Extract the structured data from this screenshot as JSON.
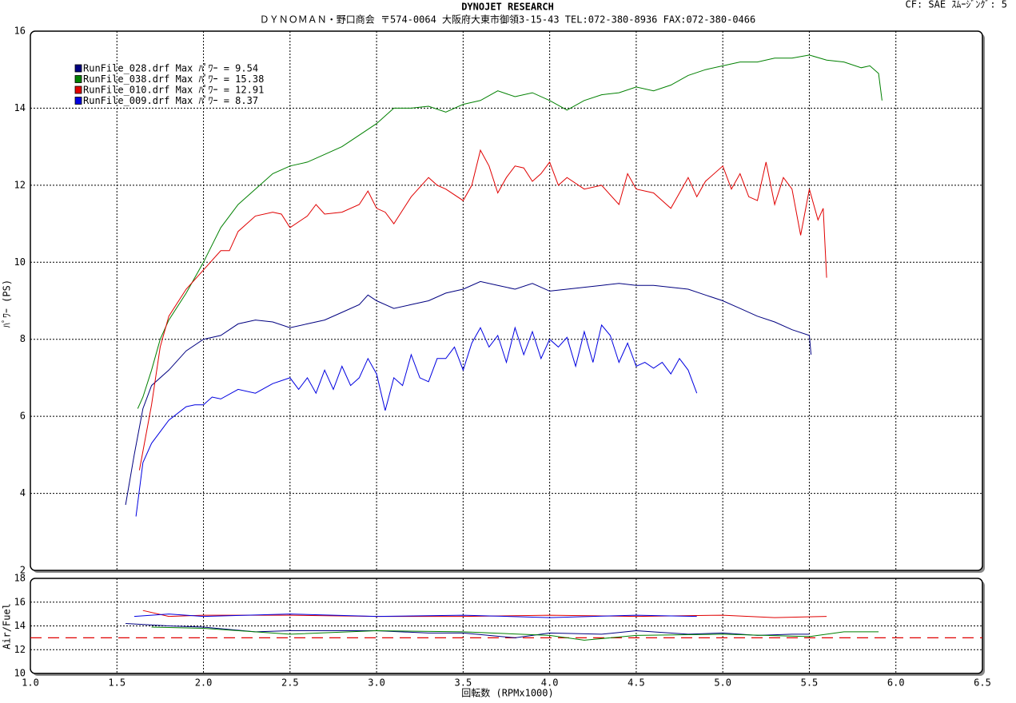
{
  "chart_data": [
    {
      "type": "line",
      "title": "DYNOJET  RESEARCH",
      "subtitle": "ＤＹＮＯＭＡＮ・野口商会 〒574-0064 大阪府大東市御領3-15-43 TEL:072-380-8936 FAX:072-380-0466",
      "annotation": "CF: SAE  ｽﾑｰｼﾞﾝｸﾞ: 5",
      "y_label": "ﾊﾟﾜｰ (PS)",
      "xlim": [
        1.0,
        6.5
      ],
      "xticks": [
        1.5,
        2,
        2.5,
        3,
        3.5,
        4,
        4.5,
        5,
        5.5,
        6
      ],
      "ylim": [
        2,
        16
      ],
      "yticks": [
        2,
        4,
        6,
        8,
        10,
        12,
        14,
        16
      ],
      "grid": true,
      "legend": "upper left",
      "series": [
        {
          "name": "RunFile_028.drf Max ﾊﾟﾜｰ = 9.54",
          "color": "#000080",
          "x": [
            1.55,
            1.6,
            1.65,
            1.7,
            1.8,
            1.9,
            2.0,
            2.1,
            2.2,
            2.3,
            2.4,
            2.5,
            2.6,
            2.7,
            2.8,
            2.9,
            2.95,
            3.0,
            3.1,
            3.2,
            3.3,
            3.4,
            3.5,
            3.6,
            3.7,
            3.8,
            3.9,
            4.0,
            4.1,
            4.2,
            4.3,
            4.4,
            4.5,
            4.6,
            4.7,
            4.8,
            4.9,
            5.0,
            5.1,
            5.2,
            5.3,
            5.4,
            5.5,
            5.51
          ],
          "values": [
            3.7,
            5.0,
            6.2,
            6.8,
            7.2,
            7.7,
            8.0,
            8.1,
            8.4,
            8.5,
            8.45,
            8.3,
            8.4,
            8.5,
            8.7,
            8.9,
            9.15,
            9.0,
            8.8,
            8.9,
            9.0,
            9.2,
            9.3,
            9.5,
            9.4,
            9.3,
            9.45,
            9.25,
            9.3,
            9.35,
            9.4,
            9.45,
            9.4,
            9.4,
            9.35,
            9.3,
            9.15,
            9.0,
            8.8,
            8.6,
            8.45,
            8.25,
            8.1,
            7.6
          ]
        },
        {
          "name": "RunFile_038.drf Max ﾊﾟﾜｰ = 15.38",
          "color": "#008000",
          "x": [
            1.62,
            1.65,
            1.7,
            1.75,
            1.8,
            1.9,
            2.0,
            2.1,
            2.2,
            2.3,
            2.4,
            2.5,
            2.6,
            2.7,
            2.8,
            2.9,
            3.0,
            3.1,
            3.2,
            3.3,
            3.4,
            3.5,
            3.6,
            3.7,
            3.8,
            3.9,
            4.0,
            4.1,
            4.2,
            4.3,
            4.4,
            4.5,
            4.6,
            4.7,
            4.8,
            4.9,
            5.0,
            5.1,
            5.2,
            5.3,
            5.4,
            5.5,
            5.6,
            5.7,
            5.8,
            5.85,
            5.9,
            5.92
          ],
          "values": [
            6.2,
            6.5,
            7.2,
            8.0,
            8.5,
            9.2,
            10.0,
            10.9,
            11.5,
            11.9,
            12.3,
            12.5,
            12.6,
            12.8,
            13.0,
            13.3,
            13.6,
            14.0,
            14.0,
            14.05,
            13.9,
            14.1,
            14.2,
            14.45,
            14.3,
            14.4,
            14.2,
            13.95,
            14.2,
            14.35,
            14.4,
            14.55,
            14.45,
            14.6,
            14.85,
            15.0,
            15.1,
            15.2,
            15.2,
            15.3,
            15.3,
            15.38,
            15.25,
            15.2,
            15.05,
            15.1,
            14.9,
            14.2
          ]
        },
        {
          "name": "RunFile_010.drf Max ﾊﾟﾜｰ = 12.91",
          "color": "#e00000",
          "x": [
            1.63,
            1.7,
            1.75,
            1.8,
            1.9,
            2.0,
            2.1,
            2.15,
            2.2,
            2.3,
            2.4,
            2.45,
            2.5,
            2.6,
            2.65,
            2.7,
            2.8,
            2.9,
            2.95,
            3.0,
            3.05,
            3.1,
            3.2,
            3.3,
            3.35,
            3.4,
            3.5,
            3.55,
            3.6,
            3.65,
            3.7,
            3.75,
            3.8,
            3.85,
            3.9,
            3.95,
            4.0,
            4.05,
            4.1,
            4.2,
            4.3,
            4.4,
            4.45,
            4.5,
            4.6,
            4.7,
            4.8,
            4.85,
            4.9,
            5.0,
            5.05,
            5.1,
            5.15,
            5.2,
            5.25,
            5.3,
            5.35,
            5.4,
            5.45,
            5.5,
            5.55,
            5.58,
            5.6
          ],
          "values": [
            4.6,
            6.3,
            7.8,
            8.6,
            9.3,
            9.8,
            10.3,
            10.3,
            10.8,
            11.2,
            11.3,
            11.25,
            10.9,
            11.2,
            11.5,
            11.25,
            11.3,
            11.5,
            11.85,
            11.4,
            11.3,
            11.0,
            11.7,
            12.2,
            12.0,
            11.9,
            11.6,
            12.0,
            12.91,
            12.5,
            11.8,
            12.2,
            12.5,
            12.45,
            12.1,
            12.3,
            12.6,
            12.0,
            12.2,
            11.9,
            12.0,
            11.5,
            12.3,
            11.9,
            11.8,
            11.4,
            12.2,
            11.7,
            12.1,
            12.5,
            11.9,
            12.3,
            11.7,
            11.6,
            12.6,
            11.5,
            12.2,
            11.9,
            10.7,
            11.9,
            11.1,
            11.4,
            9.6
          ]
        },
        {
          "name": "RunFile_009.drf Max ﾊﾟﾜｰ = 8.37",
          "color": "#0000e0",
          "x": [
            1.61,
            1.65,
            1.7,
            1.75,
            1.8,
            1.9,
            1.95,
            2.0,
            2.05,
            2.1,
            2.2,
            2.3,
            2.4,
            2.5,
            2.55,
            2.6,
            2.65,
            2.7,
            2.75,
            2.8,
            2.85,
            2.9,
            2.95,
            3.0,
            3.05,
            3.1,
            3.15,
            3.2,
            3.25,
            3.3,
            3.35,
            3.4,
            3.45,
            3.5,
            3.55,
            3.6,
            3.65,
            3.7,
            3.75,
            3.8,
            3.85,
            3.9,
            3.95,
            4.0,
            4.05,
            4.1,
            4.15,
            4.2,
            4.25,
            4.3,
            4.35,
            4.4,
            4.45,
            4.5,
            4.55,
            4.6,
            4.65,
            4.7,
            4.75,
            4.8,
            4.85
          ],
          "values": [
            3.4,
            4.8,
            5.3,
            5.6,
            5.9,
            6.25,
            6.3,
            6.3,
            6.5,
            6.45,
            6.7,
            6.6,
            6.85,
            7.0,
            6.7,
            7.0,
            6.6,
            7.2,
            6.7,
            7.3,
            6.8,
            7.0,
            7.5,
            7.1,
            6.15,
            7.0,
            6.8,
            7.6,
            7.0,
            6.9,
            7.5,
            7.5,
            7.8,
            7.2,
            7.9,
            8.3,
            7.8,
            8.1,
            7.4,
            8.3,
            7.6,
            8.2,
            7.5,
            8.0,
            7.8,
            8.05,
            7.3,
            8.2,
            7.4,
            8.37,
            8.1,
            7.4,
            7.9,
            7.3,
            7.4,
            7.25,
            7.4,
            7.1,
            7.5,
            7.2,
            6.6
          ]
        }
      ]
    },
    {
      "type": "line",
      "y_label": "Air/Fuel",
      "x_label": "回転数 (RPMx1000)",
      "xlim": [
        1.0,
        6.5
      ],
      "xticks": [
        {
          "value": 1.0,
          "label": "1.0"
        },
        {
          "value": 1.5,
          "label": "1.5"
        },
        {
          "value": 2.0,
          "label": "2.0"
        },
        {
          "value": 2.5,
          "label": "2.5"
        },
        {
          "value": 3.0,
          "label": "3.0"
        },
        {
          "value": 3.5,
          "label": "3.5"
        },
        {
          "value": 4.0,
          "label": "4.0"
        },
        {
          "value": 4.5,
          "label": "4.5"
        },
        {
          "value": 5.0,
          "label": "5.0"
        },
        {
          "value": 5.5,
          "label": "5.5"
        },
        {
          "value": 6.0,
          "label": "6.0"
        },
        {
          "value": 6.5,
          "label": "6.5"
        }
      ],
      "ylim": [
        10,
        18
      ],
      "yticks": [
        10,
        12,
        14,
        16,
        18
      ],
      "grid": true,
      "reference_line": {
        "value": 13,
        "color": "#e00000"
      },
      "series": [
        {
          "color": "#e00000",
          "x": [
            1.65,
            1.8,
            2.0,
            2.5,
            3.0,
            3.5,
            4.0,
            4.5,
            5.0,
            5.3,
            5.6
          ],
          "values": [
            15.3,
            14.8,
            14.9,
            14.9,
            14.8,
            14.8,
            14.9,
            14.8,
            14.9,
            14.7,
            14.8
          ]
        },
        {
          "color": "#0000e0",
          "x": [
            1.6,
            1.8,
            2.0,
            2.5,
            3.0,
            3.5,
            4.0,
            4.5,
            4.85
          ],
          "values": [
            14.8,
            15.0,
            14.8,
            15.0,
            14.8,
            14.9,
            14.7,
            14.9,
            14.8
          ]
        },
        {
          "color": "#000080",
          "x": [
            1.55,
            1.8,
            2.0,
            2.3,
            2.5,
            3.0,
            3.3,
            3.5,
            3.8,
            4.0,
            4.3,
            4.5,
            4.8,
            5.0,
            5.2,
            5.4,
            5.5
          ],
          "values": [
            14.2,
            14.0,
            13.9,
            13.5,
            13.6,
            13.6,
            13.4,
            13.4,
            13.0,
            13.4,
            13.3,
            13.6,
            13.3,
            13.4,
            13.2,
            13.3,
            13.3
          ]
        },
        {
          "color": "#008000",
          "x": [
            1.7,
            2.0,
            2.5,
            3.0,
            3.5,
            4.0,
            4.2,
            4.5,
            5.0,
            5.5,
            5.7,
            5.9
          ],
          "values": [
            13.9,
            13.8,
            13.3,
            13.6,
            13.5,
            13.2,
            12.8,
            13.2,
            13.3,
            13.1,
            13.5,
            13.5
          ]
        }
      ]
    }
  ]
}
